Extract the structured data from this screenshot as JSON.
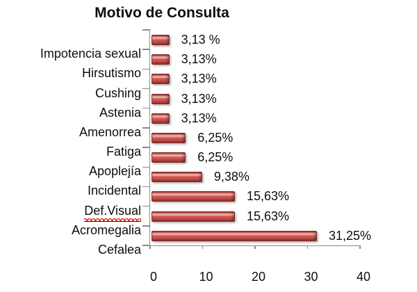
{
  "title": "Motivo de Consulta",
  "colors": {
    "bar_fill": "#c0504d",
    "bar_highlight": "#f2b5af",
    "bar_border": "#7d2b28",
    "axis_line": "#8a8a8a",
    "text": "#0d0d0d",
    "spellcheck_squiggle": "#e0392e",
    "background": "#ffffff"
  },
  "chart_data": {
    "type": "bar",
    "orientation": "horizontal",
    "title": "Motivo de Consulta",
    "categories": [
      "Impotencia sexual",
      "Hirsutismo",
      "Cushing",
      "Astenia",
      "Amenorrea",
      "Fatiga",
      "Apoplejía",
      "Incidental",
      "Def.Visual",
      "Acromegalia",
      "Cefalea"
    ],
    "values": [
      3.13,
      3.13,
      3.13,
      3.13,
      3.13,
      6.25,
      6.25,
      9.38,
      15.63,
      15.63,
      31.25
    ],
    "value_labels": [
      "3,13 %",
      "3,13%",
      "3,13%",
      "3,13%",
      "3,13%",
      "6,25%",
      "6,25%",
      "9,38%",
      "15,63%",
      "15,63%",
      "31,25%"
    ],
    "xlabel": "",
    "ylabel": "",
    "xlim": [
      0,
      40
    ],
    "x_ticks": [
      0,
      10,
      20,
      30,
      40
    ],
    "x_tick_labels": [
      "0",
      "10",
      "20",
      "30",
      "40"
    ],
    "grid": false,
    "legend": false
  },
  "underlined_squiggle_category": "Def.Visual"
}
